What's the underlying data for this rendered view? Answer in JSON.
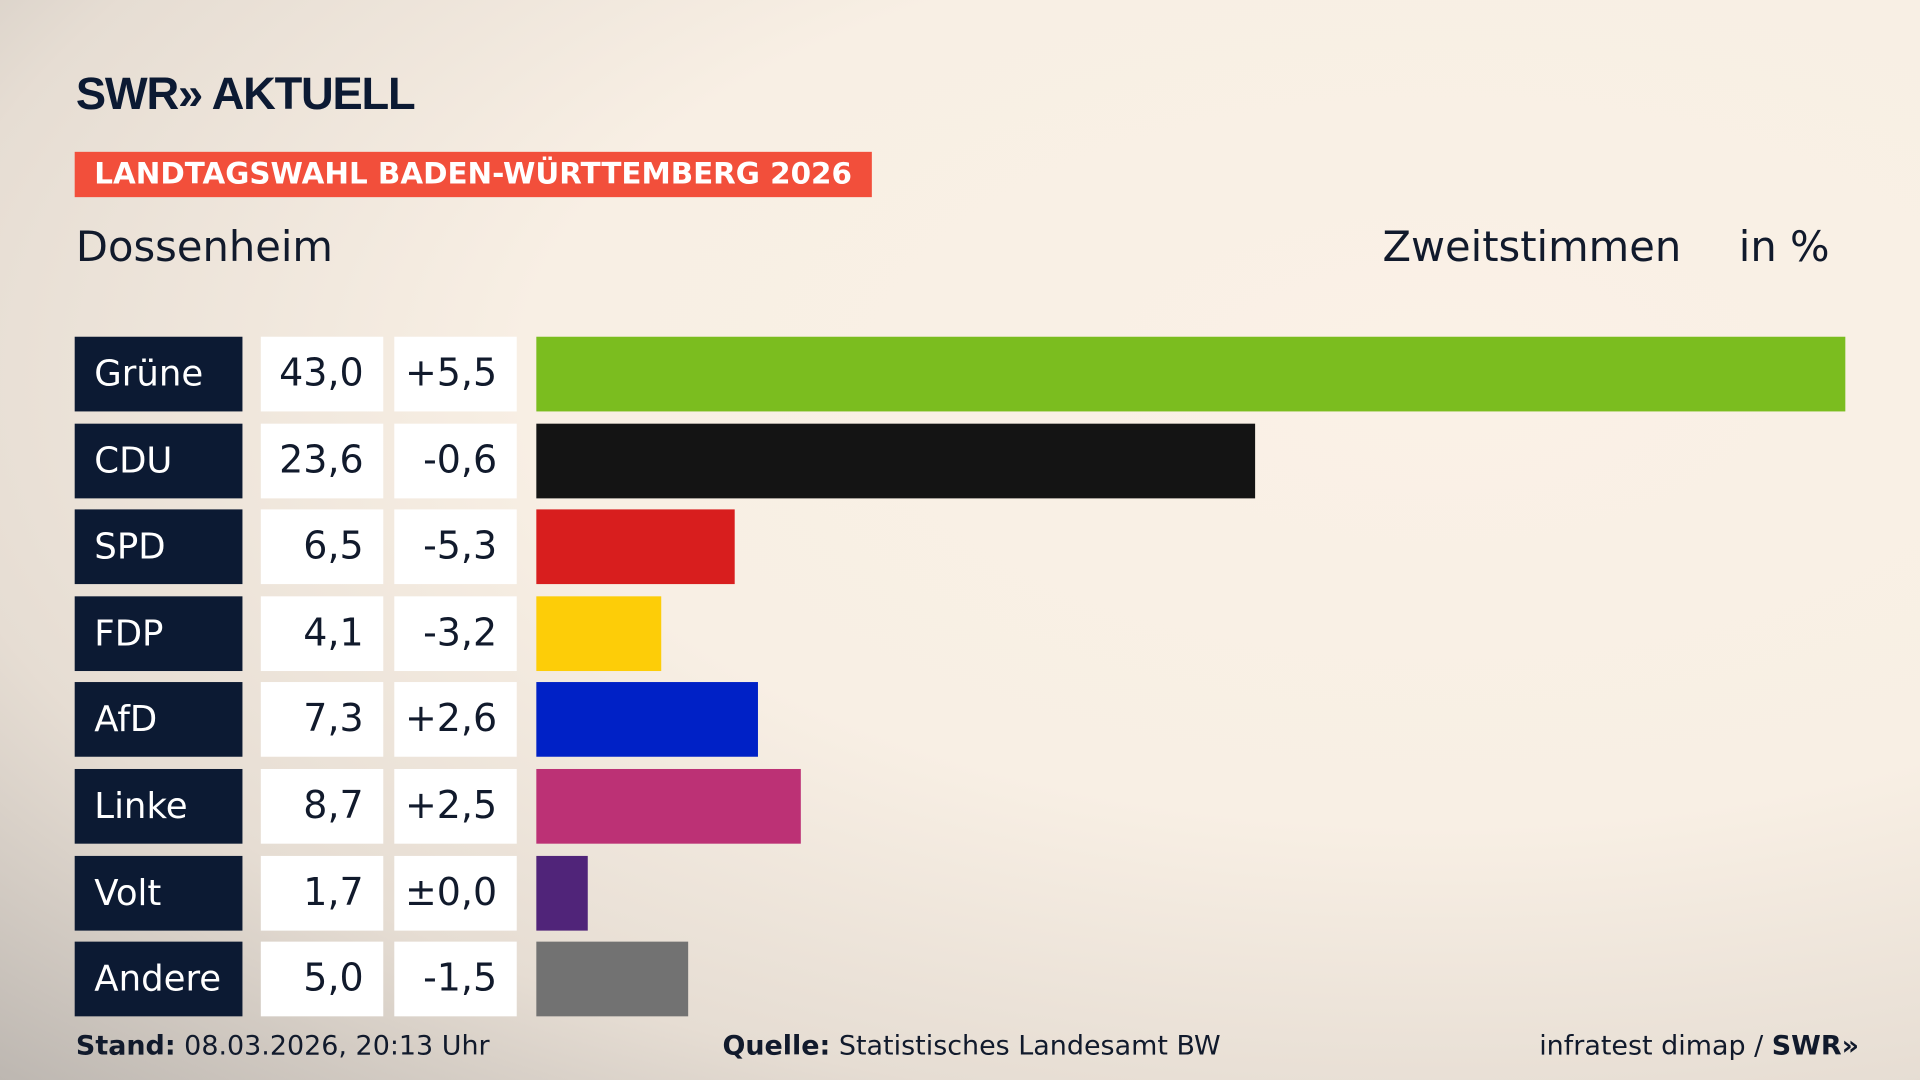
{
  "header": {
    "logo": "SWR» AKTUELL",
    "kicker": "LANDTAGSWAHL BADEN-WÜRTTEMBERG 2026",
    "place": "Dossenheim",
    "metric": "Zweitstimmen",
    "unit": "in %"
  },
  "chart_data": {
    "type": "bar",
    "orientation": "horizontal",
    "categories": [
      "Grüne",
      "CDU",
      "SPD",
      "FDP",
      "AfD",
      "Linke",
      "Volt",
      "Andere"
    ],
    "values": [
      43.0,
      23.6,
      6.5,
      4.1,
      7.3,
      8.7,
      1.7,
      5.0
    ],
    "value_labels": [
      "43,0",
      "23,6",
      "6,5",
      "4,1",
      "7,3",
      "8,7",
      "1,7",
      "5,0"
    ],
    "diff_labels": [
      "+5,5",
      "-0,6",
      "-5,3",
      "-3,2",
      "+2,6",
      "+2,5",
      "±0,0",
      "-1,5"
    ],
    "colors": [
      "#7bbd1f",
      "#141414",
      "#d81e1e",
      "#fdcd08",
      "#0021c6",
      "#bc3175",
      "#502479",
      "#727272"
    ],
    "xlim": [
      0,
      43.0
    ]
  },
  "footer": {
    "stand_label": "Stand:",
    "stand_value": " 08.03.2026, 20:13 Uhr",
    "source_label": "Quelle:",
    "source_value": " Statistisches Landesamt BW",
    "credit": "infratest dimap / ",
    "credit_logo": "SWR»"
  }
}
